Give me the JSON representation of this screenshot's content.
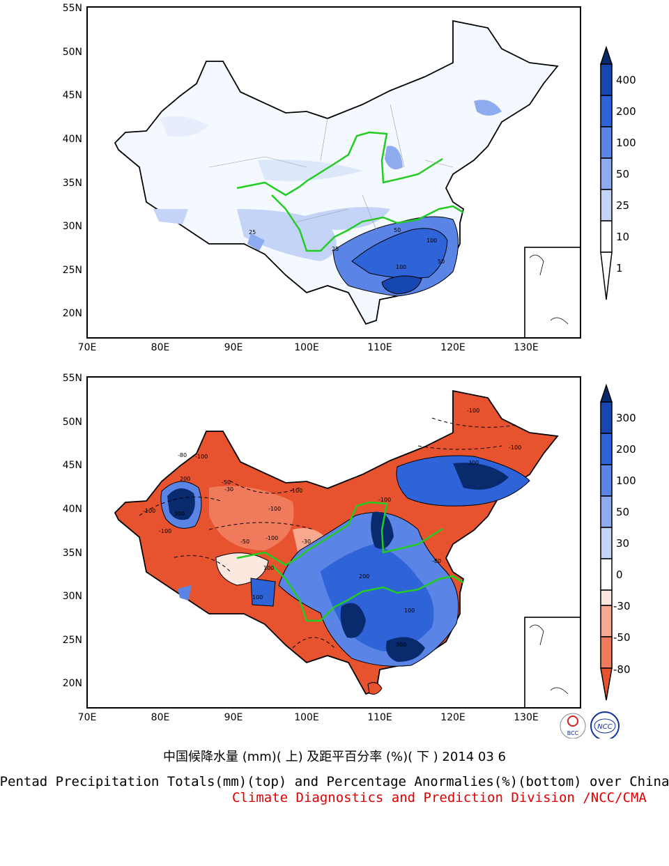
{
  "top_map": {
    "lat_labels": [
      "55N",
      "50N",
      "45N",
      "40N",
      "35N",
      "30N",
      "25N",
      "20N"
    ],
    "lon_labels": [
      "70E",
      "80E",
      "90E",
      "100E",
      "110E",
      "120E",
      "130E"
    ],
    "colorbar_labels": [
      "400",
      "200",
      "100",
      "50",
      "25",
      "10",
      "1"
    ],
    "colorbar_colors": [
      "#0a2a6e",
      "#1646b0",
      "#2f63d8",
      "#5a85e6",
      "#8eabf0",
      "#c4d4f8",
      "#ffffff"
    ],
    "contour_labels": [
      "25",
      "25",
      "50",
      "100",
      "100",
      "50"
    ]
  },
  "bottom_map": {
    "lat_labels": [
      "55N",
      "50N",
      "45N",
      "40N",
      "35N",
      "30N",
      "25N",
      "20N"
    ],
    "lon_labels": [
      "70E",
      "80E",
      "90E",
      "100E",
      "110E",
      "120E",
      "130E"
    ],
    "colorbar_labels": [
      "300",
      "200",
      "100",
      "50",
      "30",
      "0",
      "-30",
      "-50",
      "-80"
    ],
    "colorbar_colors": [
      "#0a2a6e",
      "#1646b0",
      "#2f63d8",
      "#5a85e6",
      "#8eabf0",
      "#ffffff",
      "#fde8e0",
      "#f8a98f",
      "#f07b5c",
      "#e8532f"
    ],
    "contour_labels": [
      "-100",
      "-80",
      "-100",
      "-100",
      "200",
      "300",
      "-100",
      "-100",
      "-50",
      "-30",
      "-100",
      "-100",
      "-30",
      "-50",
      "100",
      "300",
      "200",
      "100",
      "-100",
      "100",
      "300",
      "-80",
      "-100"
    ]
  },
  "logos": {
    "bcc": "BCC",
    "ncc": "NCC"
  },
  "captions": {
    "chinese": "中国候降水量 (mm)( 上) 及距平百分率 (%)( 下 ) 2014 03 6",
    "english": "Pentad Precipitation Totals(mm)(top) and Percentage Anormalies(%)(bottom) over China",
    "credit": "Climate Diagnostics and Prediction Division /NCC/CMA"
  }
}
